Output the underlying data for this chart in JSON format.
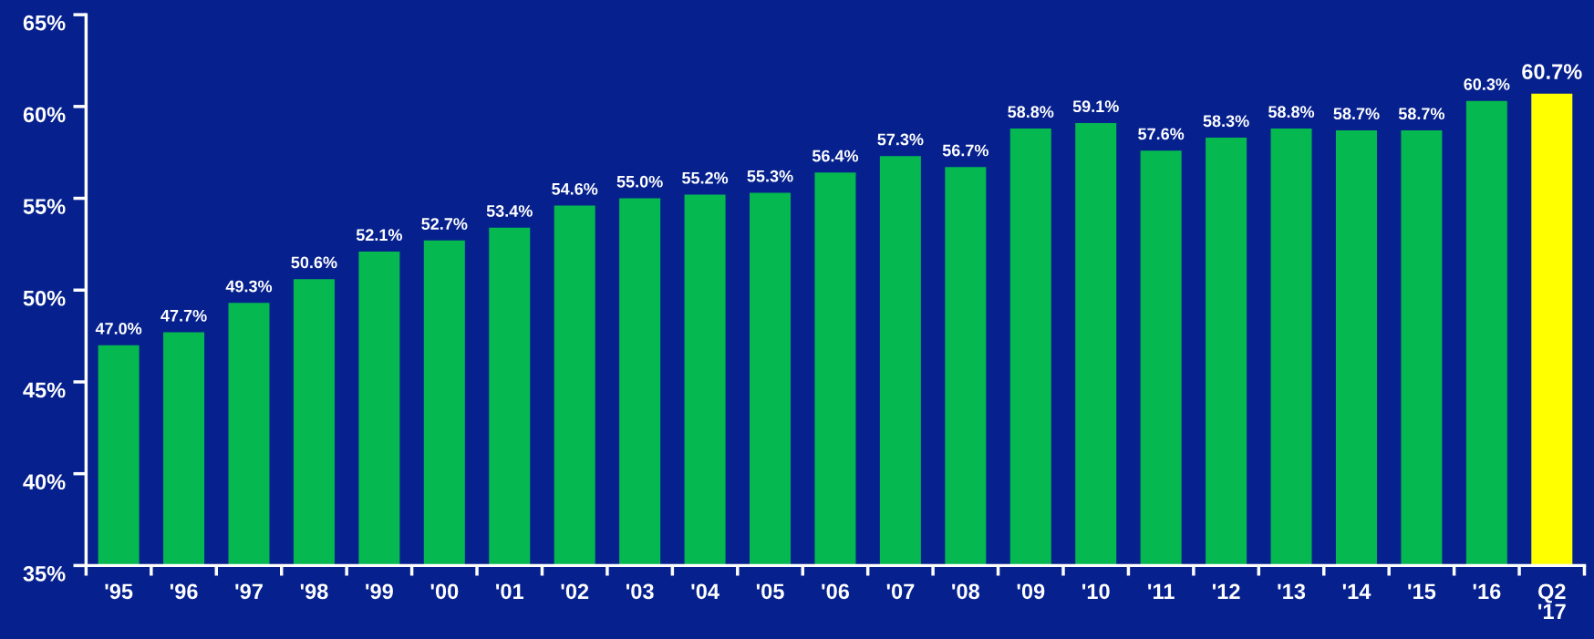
{
  "chart_data": {
    "type": "bar",
    "categories": [
      "'95",
      "'96",
      "'97",
      "'98",
      "'99",
      "'00",
      "'01",
      "'02",
      "'03",
      "'04",
      "'05",
      "'06",
      "'07",
      "'08",
      "'09",
      "'10",
      "'11",
      "'12",
      "'13",
      "'14",
      "'15",
      "'16",
      "Q2\n'17"
    ],
    "values": [
      47.0,
      47.7,
      49.3,
      50.6,
      52.1,
      52.7,
      53.4,
      54.6,
      55.0,
      55.2,
      55.3,
      56.4,
      57.3,
      56.7,
      58.8,
      59.1,
      57.6,
      58.3,
      58.8,
      58.7,
      58.7,
      60.3,
      60.7
    ],
    "value_labels": [
      "47.0%",
      "47.7%",
      "49.3%",
      "50.6%",
      "52.1%",
      "52.7%",
      "53.4%",
      "54.6%",
      "55.0%",
      "55.2%",
      "55.3%",
      "56.4%",
      "57.3%",
      "56.7%",
      "58.8%",
      "59.1%",
      "57.6%",
      "58.3%",
      "58.8%",
      "58.7%",
      "58.7%",
      "60.3%",
      "60.7%"
    ],
    "colors": [
      "#05b850",
      "#05b850",
      "#05b850",
      "#05b850",
      "#05b850",
      "#05b850",
      "#05b850",
      "#05b850",
      "#05b850",
      "#05b850",
      "#05b850",
      "#05b850",
      "#05b850",
      "#05b850",
      "#05b850",
      "#05b850",
      "#05b850",
      "#05b850",
      "#05b850",
      "#05b850",
      "#05b850",
      "#05b850",
      "#ffff00"
    ],
    "ylim": [
      35,
      65
    ],
    "yticks": [
      {
        "value": 35,
        "label": "35%"
      },
      {
        "value": 40,
        "label": "40%"
      },
      {
        "value": 45,
        "label": "45%"
      },
      {
        "value": 50,
        "label": "50%"
      },
      {
        "value": 55,
        "label": "55%"
      },
      {
        "value": 60,
        "label": "60%"
      },
      {
        "value": 65,
        "label": "65%"
      }
    ],
    "grid": false,
    "legend": false
  }
}
